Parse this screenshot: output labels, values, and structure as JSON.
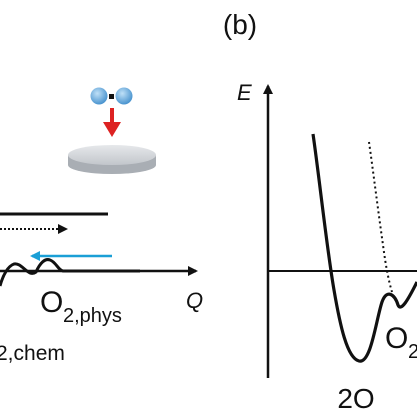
{
  "panel_b_label": "(b)",
  "panel_a": {
    "x_axis_label": "Q",
    "state_physisorbed": "O",
    "state_physisorbed_sub": "2,phys",
    "state_chemisorbed_sub": "2,chem"
  },
  "panel_b": {
    "y_axis_label": "E",
    "state_dissociated": "2O",
    "state_molecular": "O",
    "state_molecular_sub": "2"
  },
  "colors": {
    "arrow_down": "#dd2222",
    "arrow_cyan": "#1a9fd6",
    "molecule_atom": "#5aa6dd",
    "molecule_bond": "#111111",
    "surface_disc": "#cfd3d8",
    "curve": "#111111"
  },
  "icons": {
    "molecule": "oxygen-molecule-icon",
    "surface": "surface-disc-icon"
  }
}
